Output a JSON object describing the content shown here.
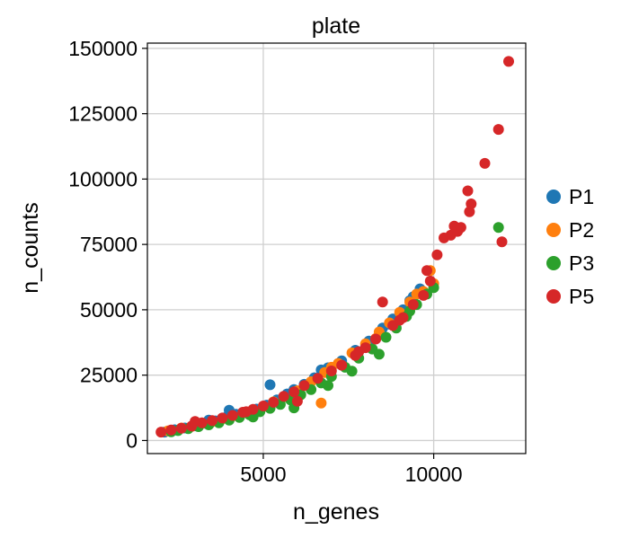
{
  "chart_data": {
    "type": "scatter",
    "title": "plate",
    "xlabel": "n_genes",
    "ylabel": "n_counts",
    "xlim": [
      1600,
      12700
    ],
    "ylim": [
      -5000,
      152000
    ],
    "xticks": [
      5000,
      10000
    ],
    "xtick_labels": [
      "5000",
      "10000"
    ],
    "yticks": [
      0,
      25000,
      50000,
      75000,
      100000,
      125000,
      150000
    ],
    "ytick_labels": [
      "0",
      "25000",
      "50000",
      "75000",
      "100000",
      "125000",
      "150000"
    ],
    "grid": true,
    "legend": {
      "position": "right"
    },
    "series": [
      {
        "name": "P1",
        "color": "#1f77b4",
        "points": [
          [
            2100,
            3200
          ],
          [
            2400,
            4100
          ],
          [
            2700,
            4800
          ],
          [
            3000,
            5600
          ],
          [
            3300,
            6600
          ],
          [
            3600,
            7500
          ],
          [
            3900,
            8800
          ],
          [
            4200,
            10000
          ],
          [
            4500,
            10900
          ],
          [
            4800,
            12000
          ],
          [
            5100,
            13500
          ],
          [
            5400,
            15500
          ],
          [
            5700,
            17800
          ],
          [
            5900,
            19500
          ],
          [
            6200,
            21500
          ],
          [
            6500,
            24000
          ],
          [
            6900,
            27800
          ],
          [
            7300,
            30500
          ],
          [
            7700,
            34500
          ],
          [
            8100,
            38000
          ],
          [
            8500,
            43000
          ],
          [
            8800,
            46500
          ],
          [
            9100,
            50000
          ],
          [
            9400,
            55000
          ],
          [
            9600,
            58000
          ],
          [
            5200,
            21300
          ],
          [
            4000,
            11600
          ],
          [
            3400,
            7800
          ],
          [
            6700,
            27000
          ],
          [
            8700,
            44500
          ],
          [
            9300,
            53500
          ]
        ]
      },
      {
        "name": "P2",
        "color": "#ff7f0e",
        "points": [
          [
            2200,
            3700
          ],
          [
            2600,
            4800
          ],
          [
            2900,
            5400
          ],
          [
            3200,
            6600
          ],
          [
            3500,
            7200
          ],
          [
            3800,
            8300
          ],
          [
            4100,
            9400
          ],
          [
            4400,
            10500
          ],
          [
            4700,
            11700
          ],
          [
            5000,
            13000
          ],
          [
            5300,
            14800
          ],
          [
            5600,
            16700
          ],
          [
            6000,
            19000
          ],
          [
            6400,
            22500
          ],
          [
            6800,
            26000
          ],
          [
            7200,
            29500
          ],
          [
            7600,
            33500
          ],
          [
            8000,
            37000
          ],
          [
            8400,
            41500
          ],
          [
            8700,
            45000
          ],
          [
            9000,
            49000
          ],
          [
            9300,
            53000
          ],
          [
            9700,
            57000
          ],
          [
            10000,
            60000
          ],
          [
            6700,
            14300
          ],
          [
            9900,
            65000
          ],
          [
            7000,
            28000
          ],
          [
            8300,
            39000
          ],
          [
            9500,
            56000
          ]
        ]
      },
      {
        "name": "P3",
        "color": "#2ca02c",
        "points": [
          [
            2300,
            3300
          ],
          [
            2500,
            3800
          ],
          [
            2800,
            4500
          ],
          [
            3100,
            5300
          ],
          [
            3400,
            6000
          ],
          [
            3700,
            6800
          ],
          [
            4000,
            7800
          ],
          [
            4300,
            8800
          ],
          [
            4600,
            9800
          ],
          [
            4900,
            11000
          ],
          [
            5200,
            12300
          ],
          [
            5500,
            13800
          ],
          [
            5800,
            15500
          ],
          [
            6100,
            17500
          ],
          [
            6400,
            19500
          ],
          [
            6700,
            22000
          ],
          [
            7000,
            24500
          ],
          [
            7400,
            28000
          ],
          [
            7800,
            31500
          ],
          [
            8200,
            35000
          ],
          [
            8600,
            39500
          ],
          [
            8900,
            43000
          ],
          [
            9200,
            47500
          ],
          [
            9500,
            52000
          ],
          [
            9800,
            56000
          ],
          [
            11900,
            81500
          ],
          [
            5900,
            12500
          ],
          [
            7600,
            26500
          ],
          [
            8400,
            33000
          ],
          [
            9300,
            49500
          ],
          [
            10000,
            58500
          ],
          [
            6900,
            21000
          ],
          [
            4700,
            9000
          ]
        ]
      },
      {
        "name": "P5",
        "color": "#d62728",
        "points": [
          [
            2000,
            3200
          ],
          [
            2300,
            4000
          ],
          [
            2600,
            4700
          ],
          [
            2900,
            5500
          ],
          [
            3200,
            6800
          ],
          [
            3500,
            7600
          ],
          [
            3800,
            8600
          ],
          [
            4100,
            9600
          ],
          [
            4400,
            10800
          ],
          [
            4700,
            11900
          ],
          [
            5000,
            13200
          ],
          [
            5300,
            14600
          ],
          [
            5600,
            16900
          ],
          [
            5900,
            18600
          ],
          [
            6200,
            21000
          ],
          [
            6600,
            23800
          ],
          [
            7000,
            26600
          ],
          [
            7300,
            28800
          ],
          [
            7700,
            32500
          ],
          [
            8000,
            35500
          ],
          [
            8300,
            38800
          ],
          [
            8500,
            53000
          ],
          [
            8800,
            44000
          ],
          [
            9100,
            47000
          ],
          [
            9400,
            52000
          ],
          [
            9700,
            55500
          ],
          [
            9800,
            65000
          ],
          [
            9900,
            61000
          ],
          [
            10100,
            71000
          ],
          [
            10300,
            77500
          ],
          [
            10500,
            78500
          ],
          [
            10600,
            82000
          ],
          [
            10700,
            80000
          ],
          [
            10800,
            81500
          ],
          [
            11000,
            95500
          ],
          [
            11050,
            87500
          ],
          [
            11100,
            90500
          ],
          [
            11500,
            106000
          ],
          [
            11900,
            119000
          ],
          [
            12000,
            76000
          ],
          [
            12200,
            145000
          ],
          [
            6000,
            15000
          ],
          [
            4500,
            11000
          ],
          [
            3000,
            7300
          ],
          [
            7800,
            34000
          ],
          [
            9000,
            46000
          ]
        ]
      }
    ]
  }
}
